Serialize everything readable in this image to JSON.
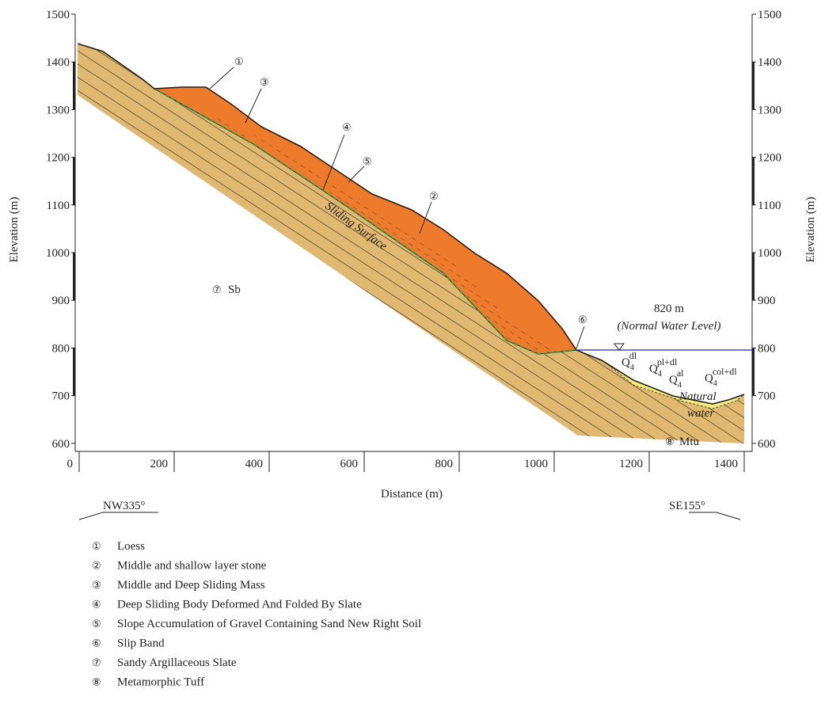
{
  "axis": {
    "y_label": "Elevation (m)",
    "x_label": "Distance (m)",
    "y_ticks": [
      1500,
      1400,
      1300,
      1200,
      1100,
      1000,
      900,
      800,
      700,
      600
    ],
    "x_ticks": [
      0,
      200,
      400,
      600,
      800,
      1000,
      1200,
      1400
    ]
  },
  "directions": {
    "left": "NW335°",
    "right": "SE155°"
  },
  "annotations": {
    "markers": [
      "①",
      "③",
      "④",
      "⑤",
      "②",
      "⑥"
    ],
    "water_level": "820 m",
    "water_note": "(Normal Water Level)",
    "sliding_surface": "Sliding Surface",
    "sb_marker": "⑦",
    "sb": "Sb",
    "mtu_marker": "⑧",
    "mtu": "Mtu",
    "natural_water_1": "Natural",
    "natural_water_2": "water",
    "quaternary": [
      {
        "base": "Q",
        "sub": "4",
        "sup": "dl"
      },
      {
        "base": "Q",
        "sub": "4",
        "sup": "pl+dl"
      },
      {
        "base": "Q",
        "sub": "4",
        "sup": "al"
      },
      {
        "base": "Q",
        "sub": "4",
        "sup": "col+dl"
      }
    ]
  },
  "legend": [
    {
      "marker": "①",
      "label": "Loess"
    },
    {
      "marker": "②",
      "label": "Middle and shallow layer stone"
    },
    {
      "marker": "③",
      "label": "Middle and Deep Sliding Mass"
    },
    {
      "marker": "④",
      "label": "Deep Sliding Body Deformed And Folded By Slate"
    },
    {
      "marker": "⑤",
      "label": "Slope Accumulation of Gravel Containing Sand New Right Soil"
    },
    {
      "marker": "⑥",
      "label": "Slip Band"
    },
    {
      "marker": "⑦",
      "label": "Sandy Argillaceous Slate"
    },
    {
      "marker": "⑧",
      "label": "Metamorphic Tuff"
    }
  ]
}
